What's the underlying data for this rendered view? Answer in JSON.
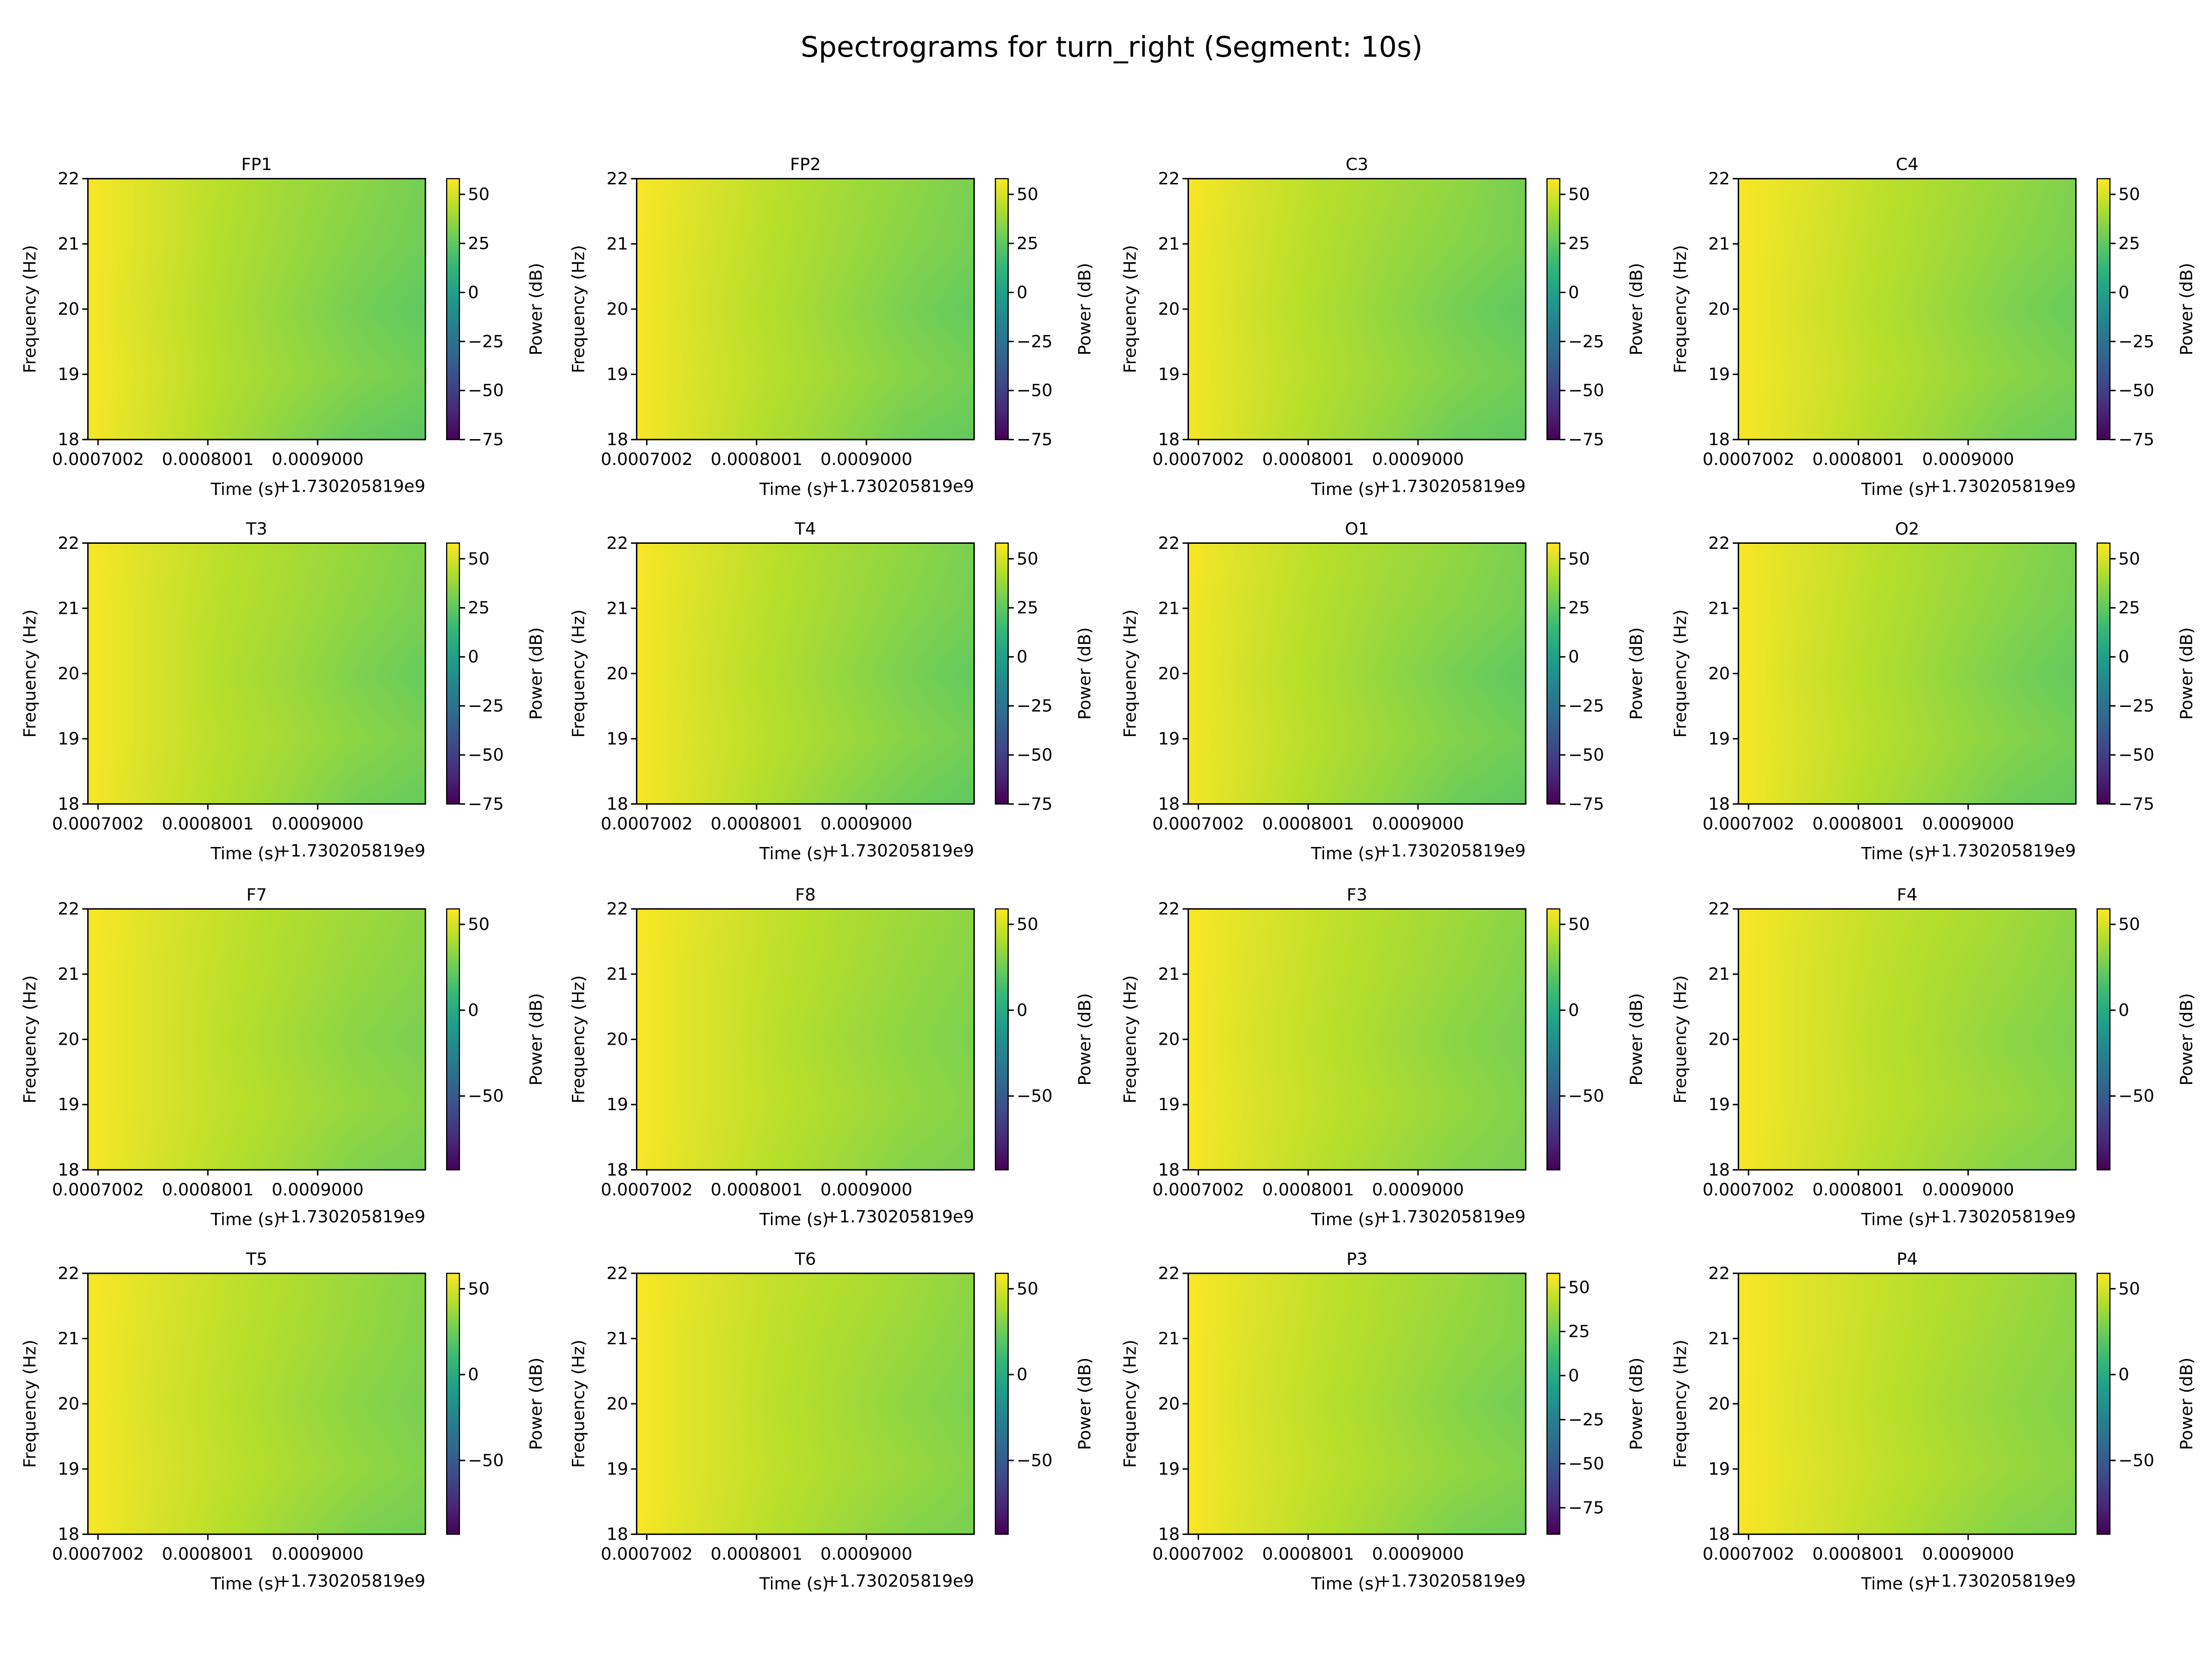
{
  "title": "Spectrograms for turn_right (Segment: 10s)",
  "chart_data": {
    "type": "heatmap",
    "colormap": "viridis",
    "xlabel": "Time (s)",
    "ylabel": "Frequency (Hz)",
    "colorbar_label": "Power (dB)",
    "x_offset_label": "+1.730205819e9",
    "xticks": [
      "0.0007002",
      "0.0008001",
      "0.0009000"
    ],
    "xtick_values": [
      0.0007002,
      0.0008001,
      0.0009
    ],
    "xlim": [
      0.000691,
      0.000998
    ],
    "yticks": [
      "18",
      "19",
      "20",
      "21",
      "22"
    ],
    "ylim": [
      18,
      22
    ],
    "grid_frequencies": [
      22,
      21,
      20,
      19,
      18
    ],
    "grid_times": [
      0.000691,
      0.000752,
      0.000814,
      0.000875,
      0.000937,
      0.000998
    ],
    "panels": [
      {
        "name": "FP1",
        "clim": [
          -75,
          58
        ],
        "cticks": [
          50,
          25,
          0,
          -25,
          -50,
          -75
        ],
        "values": [
          [
            57,
            50,
            44,
            39,
            35,
            30
          ],
          [
            57,
            50,
            43,
            38,
            33,
            29
          ],
          [
            57,
            49,
            42,
            36,
            30,
            25
          ],
          [
            57,
            50,
            43,
            38,
            33,
            29
          ],
          [
            57,
            49,
            41,
            34,
            27,
            24
          ]
        ]
      },
      {
        "name": "FP2",
        "clim": [
          -75,
          58
        ],
        "cticks": [
          50,
          25,
          0,
          -25,
          -50,
          -75
        ],
        "values": [
          [
            57,
            51,
            45,
            40,
            36,
            31
          ],
          [
            57,
            50,
            44,
            39,
            34,
            30
          ],
          [
            57,
            49,
            43,
            37,
            31,
            26
          ],
          [
            57,
            50,
            44,
            39,
            34,
            30
          ],
          [
            57,
            49,
            42,
            36,
            29,
            26
          ]
        ]
      },
      {
        "name": "C3",
        "clim": [
          -75,
          58
        ],
        "cticks": [
          50,
          25,
          0,
          -25,
          -50,
          -75
        ],
        "values": [
          [
            57,
            50,
            44,
            40,
            36,
            30
          ],
          [
            56,
            49,
            43,
            38,
            34,
            30
          ],
          [
            56,
            48,
            42,
            36,
            30,
            25
          ],
          [
            56,
            49,
            43,
            38,
            33,
            29
          ],
          [
            56,
            48,
            41,
            35,
            28,
            25
          ]
        ]
      },
      {
        "name": "C4",
        "clim": [
          -75,
          58
        ],
        "cticks": [
          50,
          25,
          0,
          -25,
          -50,
          -75
        ],
        "values": [
          [
            57,
            52,
            46,
            41,
            37,
            32
          ],
          [
            57,
            51,
            45,
            40,
            35,
            31
          ],
          [
            57,
            50,
            44,
            38,
            32,
            27
          ],
          [
            57,
            51,
            45,
            40,
            35,
            31
          ],
          [
            57,
            50,
            43,
            37,
            30,
            27
          ]
        ]
      },
      {
        "name": "T3",
        "clim": [
          -75,
          58
        ],
        "cticks": [
          50,
          25,
          0,
          -25,
          -50,
          -75
        ],
        "values": [
          [
            57,
            51,
            45,
            41,
            37,
            32
          ],
          [
            57,
            50,
            44,
            40,
            35,
            31
          ],
          [
            57,
            50,
            43,
            38,
            32,
            27
          ],
          [
            57,
            50,
            44,
            40,
            35,
            31
          ],
          [
            57,
            49,
            43,
            37,
            30,
            27
          ]
        ]
      },
      {
        "name": "T4",
        "clim": [
          -75,
          58
        ],
        "cticks": [
          50,
          25,
          0,
          -25,
          -50,
          -75
        ],
        "values": [
          [
            57,
            51,
            45,
            40,
            36,
            31
          ],
          [
            57,
            50,
            44,
            39,
            34,
            30
          ],
          [
            57,
            49,
            43,
            37,
            31,
            26
          ],
          [
            57,
            50,
            44,
            39,
            34,
            30
          ],
          [
            57,
            49,
            42,
            35,
            29,
            25
          ]
        ]
      },
      {
        "name": "O1",
        "clim": [
          -75,
          58
        ],
        "cticks": [
          50,
          25,
          0,
          -25,
          -50,
          -75
        ],
        "values": [
          [
            57,
            50,
            44,
            40,
            36,
            31
          ],
          [
            56,
            49,
            43,
            38,
            34,
            30
          ],
          [
            56,
            48,
            42,
            36,
            30,
            25
          ],
          [
            56,
            49,
            43,
            38,
            33,
            29
          ],
          [
            56,
            48,
            41,
            35,
            28,
            25
          ]
        ]
      },
      {
        "name": "O2",
        "clim": [
          -75,
          58
        ],
        "cticks": [
          50,
          25,
          0,
          -25,
          -50,
          -75
        ],
        "values": [
          [
            57,
            51,
            45,
            40,
            36,
            31
          ],
          [
            57,
            50,
            44,
            39,
            34,
            30
          ],
          [
            57,
            49,
            43,
            37,
            31,
            26
          ],
          [
            57,
            50,
            44,
            39,
            34,
            30
          ],
          [
            57,
            49,
            42,
            36,
            29,
            26
          ]
        ]
      },
      {
        "name": "F7",
        "clim": [
          -93,
          59
        ],
        "cticks": [
          50,
          0,
          -50
        ],
        "values": [
          [
            58,
            52,
            46,
            41,
            37,
            33
          ],
          [
            58,
            51,
            45,
            40,
            35,
            31
          ],
          [
            58,
            51,
            44,
            38,
            32,
            28
          ],
          [
            58,
            51,
            45,
            40,
            35,
            31
          ],
          [
            58,
            50,
            43,
            37,
            30,
            27
          ]
        ]
      },
      {
        "name": "F8",
        "clim": [
          -93,
          59
        ],
        "cticks": [
          50,
          0,
          -50
        ],
        "values": [
          [
            58,
            52,
            46,
            41,
            37,
            33
          ],
          [
            58,
            51,
            45,
            40,
            35,
            31
          ],
          [
            58,
            51,
            44,
            38,
            33,
            29
          ],
          [
            58,
            51,
            45,
            40,
            35,
            31
          ],
          [
            58,
            50,
            43,
            37,
            31,
            28
          ]
        ]
      },
      {
        "name": "F3",
        "clim": [
          -93,
          59
        ],
        "cticks": [
          50,
          0,
          -50
        ],
        "values": [
          [
            58,
            52,
            46,
            41,
            37,
            32
          ],
          [
            58,
            51,
            45,
            40,
            35,
            30
          ],
          [
            58,
            50,
            44,
            38,
            32,
            28
          ],
          [
            58,
            51,
            45,
            40,
            35,
            30
          ],
          [
            58,
            50,
            43,
            37,
            31,
            28
          ]
        ]
      },
      {
        "name": "F4",
        "clim": [
          -93,
          59
        ],
        "cticks": [
          50,
          0,
          -50
        ],
        "values": [
          [
            58,
            52,
            46,
            42,
            38,
            33
          ],
          [
            58,
            51,
            45,
            40,
            36,
            31
          ],
          [
            58,
            51,
            44,
            39,
            33,
            29
          ],
          [
            58,
            51,
            45,
            40,
            36,
            31
          ],
          [
            58,
            50,
            43,
            37,
            31,
            28
          ]
        ]
      },
      {
        "name": "T5",
        "clim": [
          -93,
          59
        ],
        "cticks": [
          50,
          0,
          -50
        ],
        "values": [
          [
            58,
            52,
            46,
            41,
            36,
            31
          ],
          [
            58,
            51,
            45,
            40,
            35,
            30
          ],
          [
            58,
            50,
            44,
            38,
            32,
            28
          ],
          [
            58,
            51,
            45,
            40,
            35,
            30
          ],
          [
            58,
            50,
            43,
            36,
            29,
            26
          ]
        ]
      },
      {
        "name": "T6",
        "clim": [
          -93,
          59
        ],
        "cticks": [
          50,
          0,
          -50
        ],
        "values": [
          [
            58,
            52,
            46,
            42,
            38,
            33
          ],
          [
            58,
            51,
            45,
            40,
            36,
            31
          ],
          [
            58,
            51,
            44,
            39,
            33,
            29
          ],
          [
            58,
            51,
            45,
            40,
            36,
            31
          ],
          [
            58,
            50,
            43,
            37,
            31,
            28
          ]
        ]
      },
      {
        "name": "P3",
        "clim": [
          -90,
          58
        ],
        "cticks": [
          50,
          25,
          0,
          -25,
          -50,
          -75
        ],
        "values": [
          [
            57,
            51,
            45,
            40,
            36,
            30
          ],
          [
            57,
            50,
            44,
            39,
            34,
            30
          ],
          [
            57,
            49,
            43,
            37,
            31,
            26
          ],
          [
            57,
            50,
            44,
            39,
            34,
            30
          ],
          [
            57,
            49,
            42,
            35,
            28,
            25
          ]
        ]
      },
      {
        "name": "P4",
        "clim": [
          -93,
          59
        ],
        "cticks": [
          50,
          0,
          -50
        ],
        "values": [
          [
            58,
            52,
            47,
            42,
            38,
            33
          ],
          [
            58,
            52,
            46,
            41,
            36,
            32
          ],
          [
            58,
            51,
            45,
            39,
            34,
            30
          ],
          [
            58,
            52,
            46,
            41,
            36,
            32
          ],
          [
            58,
            51,
            44,
            37,
            31,
            28
          ]
        ]
      }
    ]
  }
}
